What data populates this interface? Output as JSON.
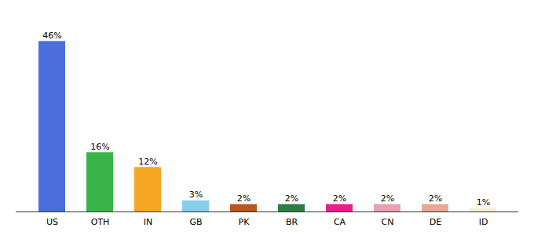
{
  "chart_data": {
    "type": "bar",
    "categories": [
      "US",
      "OTH",
      "IN",
      "GB",
      "PK",
      "BR",
      "CA",
      "CN",
      "DE",
      "ID"
    ],
    "values": [
      46,
      16,
      12,
      3,
      2,
      2,
      2,
      2,
      2,
      1
    ],
    "value_labels": [
      "46%",
      "16%",
      "12%",
      "3%",
      "2%",
      "2%",
      "2%",
      "2%",
      "2%",
      "1%"
    ],
    "colors": [
      "#4a6fdc",
      "#3ab54a",
      "#f5a623",
      "#87ceeb",
      "#b8561e",
      "#2e7d45",
      "#e91e8c",
      "#e8a0b4",
      "#e8a898",
      "#f5f0d8"
    ],
    "ylim": [
      0,
      52
    ],
    "data_labels": true,
    "tick_labels": "x",
    "grid": false
  }
}
